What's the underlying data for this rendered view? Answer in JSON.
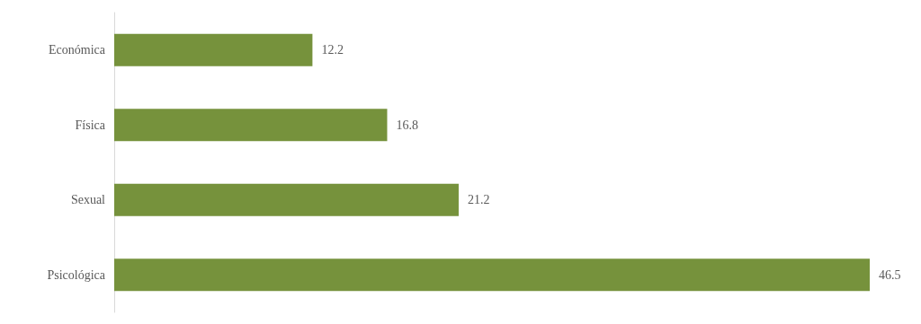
{
  "chart_data": {
    "type": "bar",
    "orientation": "horizontal",
    "categories": [
      "Económica",
      "Física",
      "Sexual",
      "Psicológica"
    ],
    "values": [
      12.2,
      16.8,
      21.2,
      46.5
    ],
    "color": "#76923c",
    "data_labels": true
  }
}
